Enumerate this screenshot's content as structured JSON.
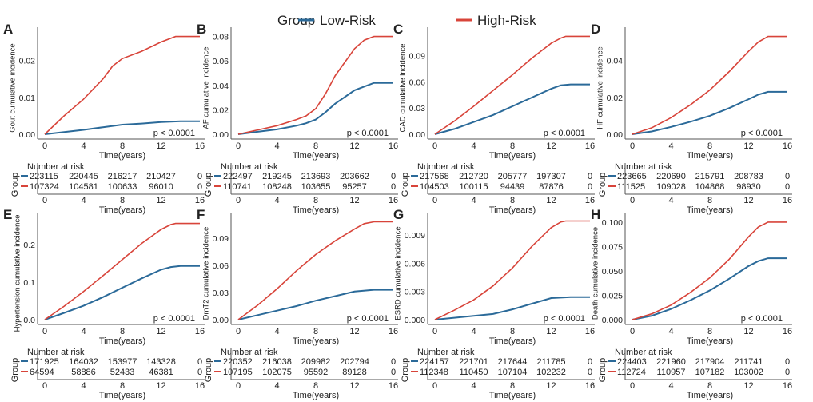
{
  "legend": {
    "title": "Group",
    "items": [
      {
        "label": "Low-Risk",
        "color": "#2b6a99"
      },
      {
        "label": "High-Risk",
        "color": "#d8443a"
      }
    ]
  },
  "common": {
    "xlabel": "Time(years)",
    "risk_title": "Number at risk",
    "risk_ylabel": "Group",
    "pvalue": "p < 0.0001"
  },
  "chart_data": [
    {
      "panel": "A",
      "type": "line",
      "ylabel": "Gout cumulative incidence",
      "xlim": [
        0,
        16
      ],
      "ylim": [
        0,
        0.0275
      ],
      "xticks": [
        0,
        4,
        8,
        12,
        16
      ],
      "yticks": [
        0,
        0.01,
        0.02
      ],
      "ytick_labels": [
        "0.00",
        "0.01",
        "0.02"
      ],
      "series": [
        {
          "name": "Low-Risk",
          "x": [
            0,
            2,
            4,
            6,
            8,
            10,
            12,
            14,
            16
          ],
          "y": [
            0,
            0.0006,
            0.0012,
            0.0019,
            0.0026,
            0.0029,
            0.0033,
            0.0035,
            0.0035
          ]
        },
        {
          "name": "High-Risk",
          "x": [
            0,
            2,
            4,
            6,
            7,
            8,
            10,
            12,
            13.5,
            16
          ],
          "y": [
            0,
            0.005,
            0.0095,
            0.015,
            0.0185,
            0.0205,
            0.0225,
            0.025,
            0.0265,
            0.0265
          ]
        }
      ],
      "risk": [
        [
          "223115",
          "220445",
          "216217",
          "210427",
          "0"
        ],
        [
          "107324",
          "104581",
          "100633",
          "96010",
          "0"
        ]
      ]
    },
    {
      "panel": "B",
      "type": "line",
      "ylabel": "AF cumulative incidence",
      "xlim": [
        0,
        16
      ],
      "ylim": [
        0,
        0.083
      ],
      "xticks": [
        0,
        4,
        8,
        12,
        16
      ],
      "yticks": [
        0,
        0.02,
        0.04,
        0.06,
        0.08
      ],
      "ytick_labels": [
        "0.00",
        "0.02",
        "0.04",
        "0.06",
        "0.08"
      ],
      "series": [
        {
          "name": "Low-Risk",
          "x": [
            0,
            2,
            4,
            6,
            7,
            8,
            9,
            10,
            12,
            14,
            16
          ],
          "y": [
            0,
            0.002,
            0.004,
            0.007,
            0.009,
            0.012,
            0.018,
            0.025,
            0.036,
            0.042,
            0.042
          ]
        },
        {
          "name": "High-Risk",
          "x": [
            0,
            2,
            4,
            6,
            7,
            8,
            9,
            10,
            12,
            13,
            14,
            16
          ],
          "y": [
            0,
            0.0035,
            0.007,
            0.012,
            0.015,
            0.021,
            0.033,
            0.048,
            0.07,
            0.077,
            0.08,
            0.08
          ]
        }
      ],
      "risk": [
        [
          "222497",
          "219245",
          "213693",
          "203662",
          "0"
        ],
        [
          "110741",
          "108248",
          "103655",
          "95257",
          "0"
        ]
      ]
    },
    {
      "panel": "C",
      "type": "line",
      "ylabel": "CAD cumulative incidence",
      "xlim": [
        0,
        16
      ],
      "ylim": [
        0,
        0.116
      ],
      "xticks": [
        0,
        4,
        8,
        12,
        16
      ],
      "yticks": [
        0,
        0.03,
        0.06,
        0.09
      ],
      "ytick_labels": [
        "0.00",
        "0.03",
        "0.06",
        "0.09"
      ],
      "series": [
        {
          "name": "Low-Risk",
          "x": [
            0,
            2,
            4,
            6,
            8,
            10,
            12,
            13,
            14,
            16
          ],
          "y": [
            0,
            0.006,
            0.014,
            0.022,
            0.032,
            0.042,
            0.052,
            0.056,
            0.057,
            0.057
          ]
        },
        {
          "name": "High-Risk",
          "x": [
            0,
            2,
            4,
            6,
            8,
            10,
            12,
            13,
            13.5,
            16
          ],
          "y": [
            0,
            0.015,
            0.032,
            0.05,
            0.068,
            0.087,
            0.104,
            0.11,
            0.112,
            0.112
          ]
        }
      ],
      "risk": [
        [
          "217568",
          "212720",
          "205777",
          "197307",
          "0"
        ],
        [
          "104503",
          "100115",
          "94439",
          "87876",
          "0"
        ]
      ]
    },
    {
      "panel": "D",
      "type": "line",
      "ylabel": "HF cumulative incidence",
      "xlim": [
        0,
        16
      ],
      "ylim": [
        0,
        0.055
      ],
      "xticks": [
        0,
        4,
        8,
        12,
        16
      ],
      "yticks": [
        0,
        0.02,
        0.04
      ],
      "ytick_labels": [
        "0.00",
        "0.02",
        "0.04"
      ],
      "series": [
        {
          "name": "Low-Risk",
          "x": [
            0,
            2,
            4,
            6,
            8,
            10,
            12,
            13,
            14,
            16
          ],
          "y": [
            0,
            0.0015,
            0.004,
            0.0068,
            0.01,
            0.0142,
            0.019,
            0.0215,
            0.023,
            0.023
          ]
        },
        {
          "name": "High-Risk",
          "x": [
            0,
            2,
            4,
            6,
            8,
            10,
            12,
            13,
            14,
            16
          ],
          "y": [
            0,
            0.0035,
            0.009,
            0.016,
            0.024,
            0.034,
            0.045,
            0.05,
            0.053,
            0.053
          ]
        }
      ],
      "risk": [
        [
          "223665",
          "220690",
          "215791",
          "208783",
          "0"
        ],
        [
          "111525",
          "109028",
          "104868",
          "98930",
          "0"
        ]
      ]
    },
    {
      "panel": "E",
      "type": "line",
      "ylabel": "Hypertension cumulative incidence",
      "xlim": [
        0,
        16
      ],
      "ylim": [
        0,
        0.27
      ],
      "xticks": [
        0,
        4,
        8,
        12,
        16
      ],
      "yticks": [
        0,
        0.1,
        0.2
      ],
      "ytick_labels": [
        "0.0",
        "0.1",
        "0.2"
      ],
      "series": [
        {
          "name": "Low-Risk",
          "x": [
            0,
            2,
            4,
            6,
            8,
            10,
            12,
            13,
            14,
            16
          ],
          "y": [
            0,
            0.018,
            0.037,
            0.06,
            0.085,
            0.11,
            0.133,
            0.14,
            0.143,
            0.143
          ]
        },
        {
          "name": "High-Risk",
          "x": [
            0,
            2,
            4,
            6,
            8,
            10,
            12,
            13,
            13.5,
            16
          ],
          "y": [
            0,
            0.036,
            0.075,
            0.117,
            0.16,
            0.203,
            0.24,
            0.253,
            0.256,
            0.256
          ]
        }
      ],
      "risk": [
        [
          "171925",
          "164032",
          "153977",
          "143328",
          "0"
        ],
        [
          "64594",
          "58886",
          "52433",
          "46381",
          "0"
        ]
      ]
    },
    {
      "panel": "F",
      "type": "line",
      "ylabel": "DmT2 cumulative incidence",
      "xlim": [
        0,
        16
      ],
      "ylim": [
        0,
        0.112
      ],
      "xticks": [
        0,
        4,
        8,
        12,
        16
      ],
      "yticks": [
        0,
        0.03,
        0.06,
        0.09
      ],
      "ytick_labels": [
        "0.00",
        "0.03",
        "0.06",
        "0.09"
      ],
      "series": [
        {
          "name": "Low-Risk",
          "x": [
            0,
            2,
            4,
            6,
            8,
            10,
            12,
            14,
            16
          ],
          "y": [
            0,
            0.005,
            0.01,
            0.015,
            0.021,
            0.026,
            0.031,
            0.033,
            0.033
          ]
        },
        {
          "name": "High-Risk",
          "x": [
            0,
            2,
            4,
            6,
            8,
            10,
            12,
            13,
            14,
            16
          ],
          "y": [
            0,
            0.016,
            0.034,
            0.054,
            0.072,
            0.087,
            0.1,
            0.106,
            0.108,
            0.108
          ]
        }
      ],
      "risk": [
        [
          "220352",
          "216038",
          "209982",
          "202794",
          "0"
        ],
        [
          "107195",
          "102075",
          "95592",
          "89128",
          "0"
        ]
      ]
    },
    {
      "panel": "G",
      "type": "line",
      "ylabel": "ESRD cumulative incidence",
      "xlim": [
        0,
        16
      ],
      "ylim": [
        0,
        0.0108
      ],
      "xticks": [
        0,
        4,
        8,
        12,
        16
      ],
      "yticks": [
        0,
        0.003,
        0.006,
        0.009
      ],
      "ytick_labels": [
        "0.000",
        "0.003",
        "0.006",
        "0.009"
      ],
      "series": [
        {
          "name": "Low-Risk",
          "x": [
            0,
            2,
            4,
            6,
            8,
            10,
            12,
            14,
            16
          ],
          "y": [
            0,
            0.0002,
            0.0004,
            0.0006,
            0.0011,
            0.0017,
            0.0023,
            0.0024,
            0.0024
          ]
        },
        {
          "name": "High-Risk",
          "x": [
            0,
            2,
            4,
            6,
            8,
            10,
            12,
            13,
            13.5,
            16
          ],
          "y": [
            0,
            0.001,
            0.0021,
            0.0036,
            0.0055,
            0.0078,
            0.0098,
            0.0104,
            0.0105,
            0.0105
          ]
        }
      ],
      "risk": [
        [
          "224157",
          "221701",
          "217644",
          "211785",
          "0"
        ],
        [
          "112348",
          "110450",
          "107104",
          "102232",
          "0"
        ]
      ]
    },
    {
      "panel": "H",
      "type": "line",
      "ylabel": "Death cumulative incidence",
      "xlim": [
        0,
        16
      ],
      "ylim": [
        0,
        0.104
      ],
      "xticks": [
        0,
        4,
        8,
        12,
        16
      ],
      "yticks": [
        0,
        0.025,
        0.05,
        0.075,
        0.1
      ],
      "ytick_labels": [
        "0.000",
        "0.025",
        "0.050",
        "0.075",
        "0.100"
      ],
      "series": [
        {
          "name": "Low-Risk",
          "x": [
            0,
            2,
            4,
            6,
            8,
            10,
            12,
            13,
            14,
            16
          ],
          "y": [
            0,
            0.004,
            0.011,
            0.02,
            0.03,
            0.042,
            0.055,
            0.06,
            0.063,
            0.063
          ]
        },
        {
          "name": "High-Risk",
          "x": [
            0,
            2,
            4,
            6,
            8,
            10,
            12,
            13,
            14,
            16
          ],
          "y": [
            0,
            0.006,
            0.015,
            0.028,
            0.043,
            0.062,
            0.085,
            0.095,
            0.1,
            0.1
          ]
        }
      ],
      "risk": [
        [
          "224403",
          "221960",
          "217904",
          "211741",
          "0"
        ],
        [
          "112724",
          "110957",
          "107182",
          "103002",
          "0"
        ]
      ]
    }
  ]
}
